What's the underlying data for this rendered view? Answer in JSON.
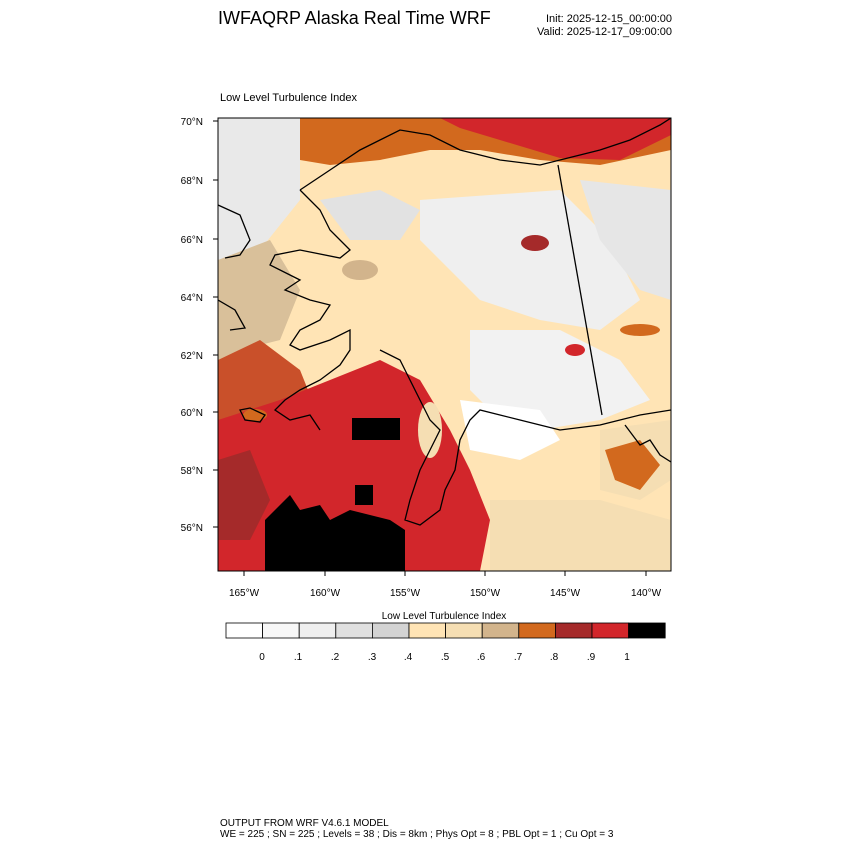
{
  "header": {
    "title": "IWFAQRP Alaska Real Time WRF",
    "init": "Init: 2025-12-15_00:00:00",
    "valid": "Valid: 2025-12-17_09:00:00"
  },
  "plot_title": "Low Level Turbulence Index",
  "lat_labels": [
    "70°N",
    "68°N",
    "66°N",
    "64°N",
    "62°N",
    "60°N",
    "58°N",
    "56°N"
  ],
  "lon_labels": [
    "165°W",
    "160°W",
    "155°W",
    "150°W",
    "145°W",
    "140°W"
  ],
  "colorbar": {
    "title": "Low Level Turbulence Index",
    "labels": [
      "0",
      ".1",
      ".2",
      ".3",
      ".4",
      ".5",
      ".6",
      ".7",
      ".8",
      ".9",
      "1"
    ],
    "colors": [
      "#ffffff",
      "#f7f7f7",
      "#efefef",
      "#e0e0e0",
      "#d3d3d3",
      "#ffe4b5",
      "#f5deb3",
      "#d2b48c",
      "#d2691e",
      "#a52a2a",
      "#d2262b",
      "#000000"
    ]
  },
  "footer": {
    "line1": "OUTPUT FROM WRF V4.6.1 MODEL",
    "line2": "WE = 225 ; SN = 225 ; Levels = 38 ; Dis = 8km ; Phys Opt = 8 ; PBL Opt = 1 ; Cu Opt = 3"
  }
}
